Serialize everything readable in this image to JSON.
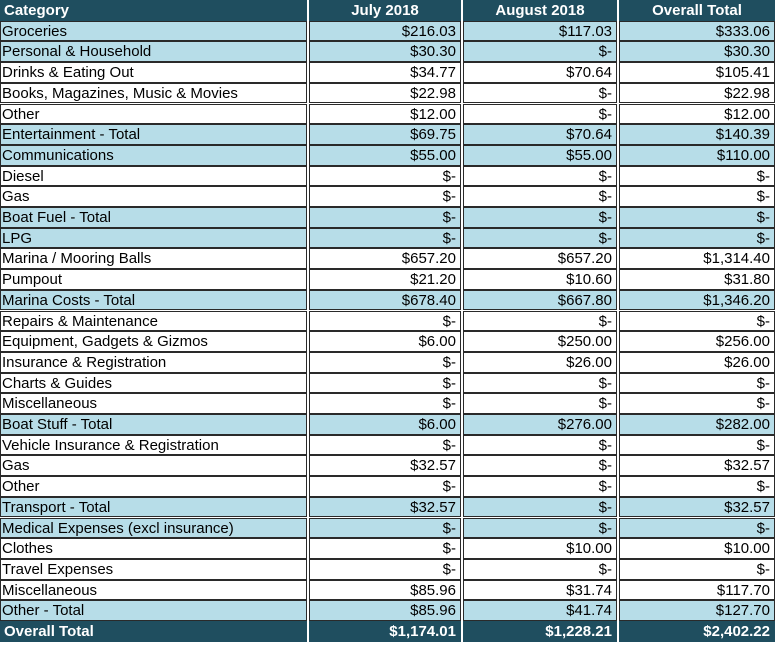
{
  "header": {
    "category": "Category",
    "col1": "July 2018",
    "col2": "August 2018",
    "col3": "Overall Total"
  },
  "rows": [
    {
      "label": "Groceries",
      "v1": "$216.03",
      "v2": "$117.03",
      "v3": "$333.06",
      "band": true
    },
    {
      "label": "Personal & Household",
      "v1": "$30.30",
      "v2": "$-",
      "v3": "$30.30",
      "band": true
    },
    {
      "label": "Drinks & Eating Out",
      "v1": "$34.77",
      "v2": "$70.64",
      "v3": "$105.41",
      "band": false
    },
    {
      "label": "Books, Magazines, Music & Movies",
      "v1": "$22.98",
      "v2": "$-",
      "v3": "$22.98",
      "band": false
    },
    {
      "label": "Other",
      "v1": "$12.00",
      "v2": "$-",
      "v3": "$12.00",
      "band": false
    },
    {
      "label": "Entertainment - Total",
      "v1": "$69.75",
      "v2": "$70.64",
      "v3": "$140.39",
      "band": true
    },
    {
      "label": "Communications",
      "v1": "$55.00",
      "v2": "$55.00",
      "v3": "$110.00",
      "band": true
    },
    {
      "label": "Diesel",
      "v1": "$-",
      "v2": "$-",
      "v3": "$-",
      "band": false
    },
    {
      "label": "Gas",
      "v1": "$-",
      "v2": "$-",
      "v3": "$-",
      "band": false
    },
    {
      "label": "Boat Fuel - Total",
      "v1": "$-",
      "v2": "$-",
      "v3": "$-",
      "band": true
    },
    {
      "label": "LPG",
      "v1": "$-",
      "v2": "$-",
      "v3": "$-",
      "band": true
    },
    {
      "label": "Marina / Mooring Balls",
      "v1": "$657.20",
      "v2": "$657.20",
      "v3": "$1,314.40",
      "band": false
    },
    {
      "label": "Pumpout",
      "v1": "$21.20",
      "v2": "$10.60",
      "v3": "$31.80",
      "band": false
    },
    {
      "label": "Marina Costs - Total",
      "v1": "$678.40",
      "v2": "$667.80",
      "v3": "$1,346.20",
      "band": true
    },
    {
      "label": "Repairs & Maintenance",
      "v1": "$-",
      "v2": "$-",
      "v3": "$-",
      "band": false
    },
    {
      "label": "Equipment, Gadgets & Gizmos",
      "v1": "$6.00",
      "v2": "$250.00",
      "v3": "$256.00",
      "band": false
    },
    {
      "label": "Insurance & Registration",
      "v1": "$-",
      "v2": "$26.00",
      "v3": "$26.00",
      "band": false
    },
    {
      "label": "Charts & Guides",
      "v1": "$-",
      "v2": "$-",
      "v3": "$-",
      "band": false
    },
    {
      "label": "Miscellaneous",
      "v1": "$-",
      "v2": "$-",
      "v3": "$-",
      "band": false
    },
    {
      "label": "Boat Stuff - Total",
      "v1": "$6.00",
      "v2": "$276.00",
      "v3": "$282.00",
      "band": true
    },
    {
      "label": "Vehicle Insurance & Registration",
      "v1": "$-",
      "v2": "$-",
      "v3": "$-",
      "band": false
    },
    {
      "label": "Gas",
      "v1": "$32.57",
      "v2": "$-",
      "v3": "$32.57",
      "band": false
    },
    {
      "label": "Other",
      "v1": "$-",
      "v2": "$-",
      "v3": "$-",
      "band": false
    },
    {
      "label": "Transport - Total",
      "v1": "$32.57",
      "v2": "$-",
      "v3": "$32.57",
      "band": true
    },
    {
      "label": "Medical Expenses (excl insurance)",
      "v1": "$-",
      "v2": "$-",
      "v3": "$-",
      "band": true
    },
    {
      "label": "Clothes",
      "v1": "$-",
      "v2": "$10.00",
      "v3": "$10.00",
      "band": false
    },
    {
      "label": "Travel Expenses",
      "v1": "$-",
      "v2": "$-",
      "v3": "$-",
      "band": false
    },
    {
      "label": "Miscellaneous",
      "v1": "$85.96",
      "v2": "$31.74",
      "v3": "$117.70",
      "band": false
    },
    {
      "label": "Other - Total",
      "v1": "$85.96",
      "v2": "$41.74",
      "v3": "$127.70",
      "band": true
    }
  ],
  "footer": {
    "label": "Overall Total",
    "v1": "$1,174.01",
    "v2": "$1,228.21",
    "v3": "$2,402.22"
  },
  "colors": {
    "header_bg": "#1f4e5f",
    "band_bg": "#b7dde8"
  }
}
